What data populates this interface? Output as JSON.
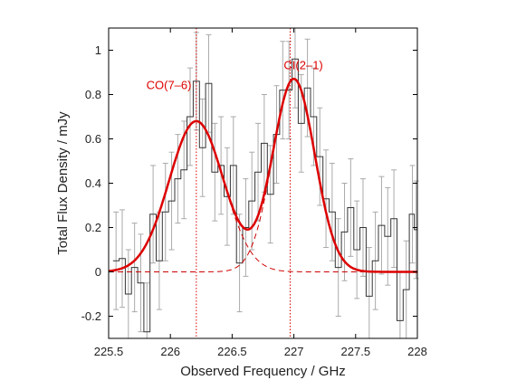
{
  "chart_data": {
    "type": "line",
    "title": "",
    "xlabel": "Observed Frequency / GHz",
    "ylabel": "Total Flux Density / mJy",
    "xlim": [
      225.5,
      228
    ],
    "ylim": [
      -0.3,
      1.1
    ],
    "grid": false,
    "legend": "none",
    "x_ticks": [
      225.5,
      226,
      226.5,
      227,
      227.5,
      228
    ],
    "x_tick_labels": [
      "225.5",
      "226",
      "226.5",
      "227",
      "227.5",
      "228"
    ],
    "y_ticks": [
      -0.2,
      0,
      0.2,
      0.4,
      0.6,
      0.8,
      1
    ],
    "y_tick_labels": [
      "-0.2",
      "0",
      "0.2",
      "0.4",
      "0.6",
      "0.8",
      "1"
    ],
    "colors": {
      "fit": "#dd0000",
      "components": "#cc0000",
      "markers": "#dd0000",
      "spectrum": "#333333",
      "errorbars": "#aaaaaa",
      "axes": "#000000"
    },
    "annotations": [
      {
        "label": "CO(7–6)",
        "x": 226.2,
        "y": 0.84
      },
      {
        "label": "CI(2–1)",
        "x": 227.05,
        "y": 0.93
      }
    ],
    "line_markers": [
      {
        "name": "CO(7–6)",
        "x": 226.21
      },
      {
        "name": "CI(2–1)",
        "x": 226.97
      }
    ],
    "components": [
      {
        "name": "CO(7–6)",
        "center": 226.21,
        "amplitude": 0.68,
        "sigma": 0.22
      },
      {
        "name": "CI(2–1)",
        "center": 227.0,
        "amplitude": 0.87,
        "sigma": 0.17
      }
    ],
    "fit_range": [
      225.5,
      227.5
    ],
    "spectrum": {
      "x": [
        225.56,
        225.61,
        225.66,
        225.71,
        225.76,
        225.81,
        225.86,
        225.91,
        225.96,
        226.01,
        226.06,
        226.11,
        226.16,
        226.21,
        226.26,
        226.31,
        226.36,
        226.41,
        226.46,
        226.51,
        226.56,
        226.61,
        226.66,
        226.71,
        226.76,
        226.81,
        226.86,
        226.91,
        226.96,
        227.01,
        227.06,
        227.11,
        227.16,
        227.21,
        227.26,
        227.31,
        227.36,
        227.41,
        227.46,
        227.51,
        227.56,
        227.61,
        227.66,
        227.71,
        227.76,
        227.81,
        227.86,
        227.91,
        227.96,
        227.99
      ],
      "y": [
        0.05,
        0.06,
        -0.1,
        0.02,
        -0.05,
        -0.27,
        0.26,
        0.05,
        0.27,
        0.32,
        0.42,
        0.46,
        0.7,
        0.86,
        0.56,
        0.85,
        0.45,
        0.48,
        0.34,
        0.48,
        0.04,
        0.2,
        0.32,
        0.45,
        0.58,
        0.35,
        0.62,
        0.82,
        0.82,
        0.96,
        0.67,
        0.83,
        0.7,
        0.52,
        0.33,
        0.27,
        0.02,
        0.18,
        0.29,
        0.1,
        0.2,
        -0.11,
        0.05,
        0.21,
        0.16,
        0.24,
        -0.22,
        -0.08,
        0.26,
        0.19
      ],
      "err": [
        0.22,
        0.22,
        0.2,
        0.2,
        0.22,
        0.22,
        0.22,
        0.22,
        0.22,
        0.22,
        0.2,
        0.22,
        0.22,
        0.22,
        0.22,
        0.22,
        0.22,
        0.22,
        0.22,
        0.22,
        0.22,
        0.22,
        0.22,
        0.22,
        0.22,
        0.22,
        0.22,
        0.22,
        0.22,
        0.22,
        0.22,
        0.22,
        0.22,
        0.22,
        0.22,
        0.22,
        0.22,
        0.22,
        0.22,
        0.22,
        0.22,
        0.22,
        0.22,
        0.22,
        0.22,
        0.22,
        0.22,
        0.22,
        0.22,
        0.22
      ]
    }
  }
}
